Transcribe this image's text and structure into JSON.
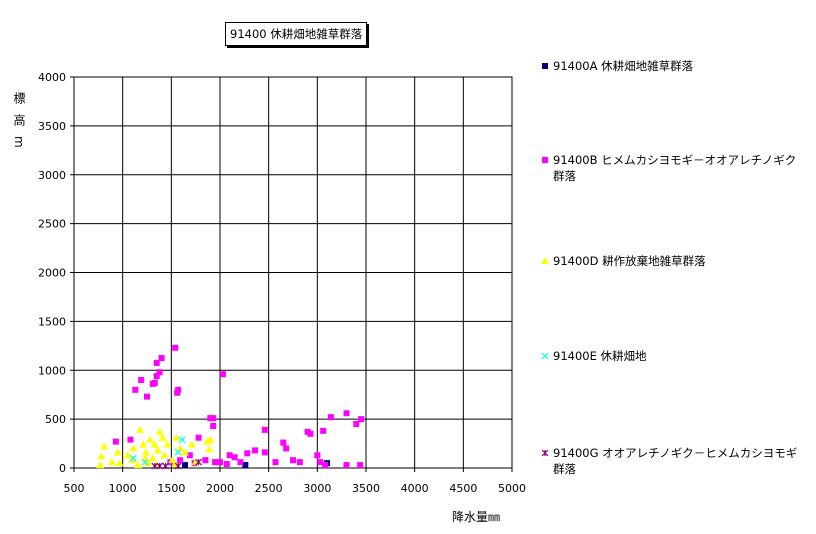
{
  "chart_data": {
    "type": "scatter",
    "title": "91400 休耕畑地雑草群落",
    "x_label": "降水量㎜",
    "y_label": "標高m",
    "xlim": [
      500,
      5000
    ],
    "xticks": [
      500,
      1000,
      1500,
      2000,
      2500,
      3000,
      3500,
      4000,
      4500,
      5000
    ],
    "ylim": [
      0,
      4000
    ],
    "yticks": [
      0,
      500,
      1000,
      1500,
      2000,
      2500,
      3000,
      3500,
      4000
    ],
    "grid": true,
    "series": [
      {
        "name": "91400A 休耕畑地雑草群落",
        "color": "#000080",
        "marker": "square",
        "x": [
          1640,
          2260,
          3100
        ],
        "values": [
          30,
          30,
          50
        ]
      },
      {
        "name": "91400B ヒメムカシヨモギ－オオアレチノギク群落",
        "color": "#ff00ff",
        "marker": "square",
        "x": [
          1540,
          1400,
          1350,
          1380,
          1350,
          1330,
          1310,
          1190,
          1130,
          1250,
          1570,
          1560,
          2030,
          1900,
          1930,
          1930,
          2460,
          2900,
          2930,
          3060,
          3140,
          3300,
          3400,
          3450,
          3000,
          1080,
          930,
          1780,
          2650,
          2680,
          2100,
          2280,
          2360,
          2460,
          2750,
          2820,
          3030,
          3080,
          3300,
          3440,
          2000,
          1850,
          1740,
          2210,
          2570,
          1690,
          1950,
          2070,
          2150,
          1590,
          1490
        ],
        "values": [
          1230,
          1125,
          1075,
          980,
          940,
          870,
          860,
          900,
          800,
          730,
          800,
          770,
          960,
          510,
          510,
          430,
          390,
          370,
          350,
          380,
          520,
          560,
          450,
          500,
          130,
          290,
          270,
          310,
          260,
          200,
          130,
          150,
          180,
          160,
          80,
          60,
          60,
          30,
          30,
          30,
          60,
          80,
          50,
          60,
          60,
          130,
          60,
          40,
          110,
          80,
          60
        ]
      },
      {
        "name": "91400D 耕作放棄地雑草群落",
        "color": "#ffff00",
        "marker": "triangle",
        "x": [
          810,
          780,
          770,
          950,
          890,
          1050,
          1110,
          1180,
          1210,
          1240,
          1280,
          1310,
          1330,
          1360,
          1380,
          1410,
          1430,
          1460,
          1510,
          1550,
          1590,
          1640,
          1710,
          1870,
          1890,
          1900,
          970,
          1160,
          1260,
          1350,
          1540,
          1750,
          1100,
          1230
        ],
        "values": [
          220,
          120,
          30,
          160,
          60,
          130,
          200,
          390,
          240,
          160,
          290,
          100,
          240,
          180,
          370,
          310,
          130,
          240,
          80,
          310,
          200,
          160,
          240,
          270,
          190,
          290,
          50,
          30,
          50,
          30,
          40,
          60,
          80,
          100
        ]
      },
      {
        "name": "91400E 休耕畑地",
        "color": "#00ffff",
        "marker": "x",
        "x": [
          1110,
          1610,
          1570,
          1230
        ],
        "values": [
          100,
          290,
          160,
          60
        ]
      },
      {
        "name": "91400G オオアレチノギク－ヒメムカシヨモギ群落",
        "color": "#800080",
        "marker": "star",
        "x": [
          1330,
          1380,
          1440,
          1570,
          1780
        ],
        "values": [
          20,
          20,
          20,
          20,
          60
        ]
      }
    ]
  }
}
